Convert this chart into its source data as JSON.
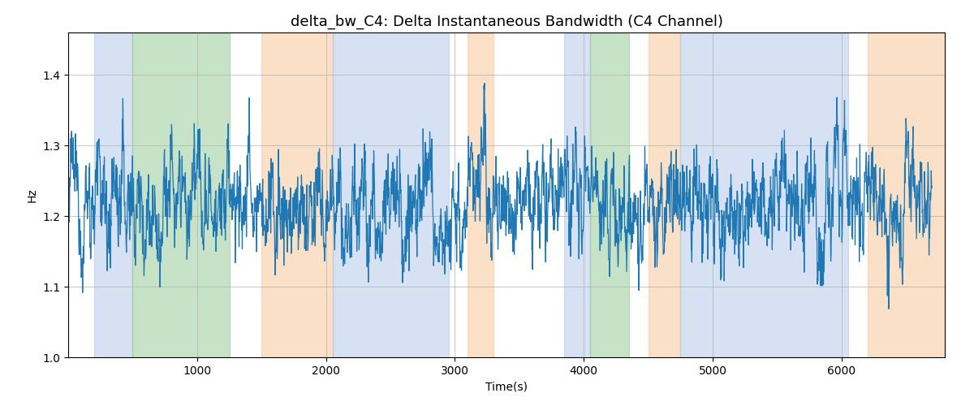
{
  "title": "delta_bw_C4: Delta Instantaneous Bandwidth (C4 Channel)",
  "xlabel": "Time(s)",
  "ylabel": "Hz",
  "ylim": [
    1.0,
    1.46
  ],
  "xlim": [
    0,
    6800
  ],
  "line_color": "#1f77b4",
  "line_width": 0.9,
  "background_color": "#ffffff",
  "grid_color": "#b0b0b0",
  "bands": [
    {
      "xmin": 200,
      "xmax": 500,
      "color": "#aec6e8",
      "alpha": 0.5
    },
    {
      "xmin": 500,
      "xmax": 1250,
      "color": "#90c890",
      "alpha": 0.5
    },
    {
      "xmin": 1500,
      "xmax": 2050,
      "color": "#f7c89a",
      "alpha": 0.55
    },
    {
      "xmin": 2050,
      "xmax": 2950,
      "color": "#aec6e8",
      "alpha": 0.5
    },
    {
      "xmin": 3100,
      "xmax": 3300,
      "color": "#f7c89a",
      "alpha": 0.55
    },
    {
      "xmin": 3850,
      "xmax": 4050,
      "color": "#aec6e8",
      "alpha": 0.5
    },
    {
      "xmin": 4050,
      "xmax": 4350,
      "color": "#90c890",
      "alpha": 0.5
    },
    {
      "xmin": 4500,
      "xmax": 4750,
      "color": "#f7c89a",
      "alpha": 0.55
    },
    {
      "xmin": 4750,
      "xmax": 6050,
      "color": "#aec6e8",
      "alpha": 0.5
    },
    {
      "xmin": 6200,
      "xmax": 6800,
      "color": "#f7c89a",
      "alpha": 0.55
    }
  ],
  "seed": 12345,
  "n_points": 2700,
  "mean": 1.215,
  "title_fontsize": 13,
  "xticks": [
    1000,
    2000,
    3000,
    4000,
    5000,
    6000
  ]
}
